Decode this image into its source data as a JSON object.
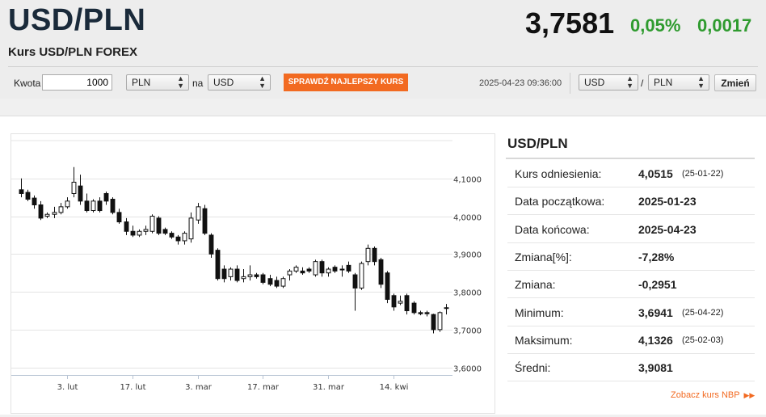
{
  "header": {
    "pair": "USD/PLN",
    "subtitle": "Kurs USD/PLN FOREX",
    "price": "3,7581",
    "change_pct": "0,05%",
    "change_abs": "0,0017"
  },
  "converter": {
    "amount_label": "Kwota",
    "amount_value": "1000",
    "from_currency": "PLN",
    "na_label": "na",
    "to_currency": "USD",
    "best_rate_button": "SPRAWDŹ NAJLEPSZY KURS",
    "timestamp": "2025-04-23 09:36:00",
    "pair_base": "USD",
    "slash": "/",
    "pair_quote": "PLN",
    "change_button": "Zmień"
  },
  "info": {
    "title": "USD/PLN",
    "rows": [
      {
        "label": "Kurs odniesienia:",
        "value": "4,0515",
        "date": "(25-01-22)"
      },
      {
        "label": "Data początkowa:",
        "value": "2025-01-23",
        "date": ""
      },
      {
        "label": "Data końcowa:",
        "value": "2025-04-23",
        "date": ""
      },
      {
        "label": "Zmiana[%]:",
        "value": "-7,28%",
        "date": ""
      },
      {
        "label": "Zmiana:",
        "value": "-0,2951",
        "date": ""
      },
      {
        "label": "Minimum:",
        "value": "3,6941",
        "date": "(25-04-22)"
      },
      {
        "label": "Maksimum:",
        "value": "4,1326",
        "date": "(25-02-03)"
      },
      {
        "label": "Średni:",
        "value": "3,9081",
        "date": ""
      }
    ],
    "nbp_link": "Zobacz kurs NBP",
    "nbp_icon": "double-chevron-right-icon"
  },
  "colors": {
    "up": "#2f9b2f",
    "accent": "#f26a21",
    "candle_down": "#111111",
    "candle_up": "#ffffff"
  },
  "chart_data": {
    "type": "candlestick",
    "y_ticks": [
      "4,1000",
      "4,0000",
      "3,9000",
      "3,8000",
      "3,7000",
      "3,6000"
    ],
    "y_tick_values": [
      4.1,
      4.0,
      3.9,
      3.8,
      3.7,
      3.6
    ],
    "ylim": [
      3.58,
      4.2
    ],
    "x_ticks": [
      {
        "label": "3. lut",
        "index": 7
      },
      {
        "label": "17. lut",
        "index": 17
      },
      {
        "label": "3. mar",
        "index": 27
      },
      {
        "label": "17. mar",
        "index": 37
      },
      {
        "label": "31. mar",
        "index": 47
      },
      {
        "label": "14. kwi",
        "index": 57
      }
    ],
    "candles": [
      {
        "o": 4.07,
        "h": 4.1,
        "l": 4.05,
        "c": 4.06
      },
      {
        "o": 4.063,
        "h": 4.07,
        "l": 4.04,
        "c": 4.045
      },
      {
        "o": 4.048,
        "h": 4.055,
        "l": 4.02,
        "c": 4.03
      },
      {
        "o": 4.03,
        "h": 4.04,
        "l": 3.99,
        "c": 3.995
      },
      {
        "o": 4.0,
        "h": 4.01,
        "l": 3.995,
        "c": 4.005
      },
      {
        "o": 4.005,
        "h": 4.025,
        "l": 3.995,
        "c": 4.01
      },
      {
        "o": 4.01,
        "h": 4.035,
        "l": 4.005,
        "c": 4.025
      },
      {
        "o": 4.025,
        "h": 4.05,
        "l": 4.02,
        "c": 4.04
      },
      {
        "o": 4.06,
        "h": 4.13,
        "l": 4.05,
        "c": 4.09
      },
      {
        "o": 4.08,
        "h": 4.11,
        "l": 4.03,
        "c": 4.04
      },
      {
        "o": 4.04,
        "h": 4.06,
        "l": 4.01,
        "c": 4.015
      },
      {
        "o": 4.015,
        "h": 4.045,
        "l": 4.01,
        "c": 4.04
      },
      {
        "o": 4.04,
        "h": 4.05,
        "l": 4.01,
        "c": 4.015
      },
      {
        "o": 4.06,
        "h": 4.065,
        "l": 4.03,
        "c": 4.04
      },
      {
        "o": 4.045,
        "h": 4.05,
        "l": 4.005,
        "c": 4.01
      },
      {
        "o": 4.01,
        "h": 4.02,
        "l": 3.98,
        "c": 3.985
      },
      {
        "o": 3.985,
        "h": 3.995,
        "l": 3.95,
        "c": 3.96
      },
      {
        "o": 3.96,
        "h": 3.975,
        "l": 3.945,
        "c": 3.95
      },
      {
        "o": 3.95,
        "h": 3.965,
        "l": 3.945,
        "c": 3.96
      },
      {
        "o": 3.96,
        "h": 3.975,
        "l": 3.95,
        "c": 3.965
      },
      {
        "o": 3.96,
        "h": 4.005,
        "l": 3.955,
        "c": 4.0
      },
      {
        "o": 3.995,
        "h": 4.0,
        "l": 3.95,
        "c": 3.955
      },
      {
        "o": 3.965,
        "h": 3.97,
        "l": 3.95,
        "c": 3.955
      },
      {
        "o": 3.955,
        "h": 3.96,
        "l": 3.94,
        "c": 3.945
      },
      {
        "o": 3.945,
        "h": 3.95,
        "l": 3.925,
        "c": 3.935
      },
      {
        "o": 3.935,
        "h": 3.96,
        "l": 3.925,
        "c": 3.955
      },
      {
        "o": 3.94,
        "h": 4.01,
        "l": 3.93,
        "c": 3.995
      },
      {
        "o": 3.99,
        "h": 4.035,
        "l": 3.98,
        "c": 4.025
      },
      {
        "o": 4.02,
        "h": 4.03,
        "l": 3.95,
        "c": 3.955
      },
      {
        "o": 3.95,
        "h": 3.955,
        "l": 3.89,
        "c": 3.9
      },
      {
        "o": 3.91,
        "h": 3.915,
        "l": 3.83,
        "c": 3.835
      },
      {
        "o": 3.86,
        "h": 3.87,
        "l": 3.825,
        "c": 3.835
      },
      {
        "o": 3.84,
        "h": 3.865,
        "l": 3.83,
        "c": 3.86
      },
      {
        "o": 3.86,
        "h": 3.87,
        "l": 3.825,
        "c": 3.83
      },
      {
        "o": 3.835,
        "h": 3.86,
        "l": 3.825,
        "c": 3.84
      },
      {
        "o": 3.84,
        "h": 3.87,
        "l": 3.83,
        "c": 3.845
      },
      {
        "o": 3.845,
        "h": 3.85,
        "l": 3.835,
        "c": 3.84
      },
      {
        "o": 3.845,
        "h": 3.85,
        "l": 3.82,
        "c": 3.825
      },
      {
        "o": 3.835,
        "h": 3.845,
        "l": 3.815,
        "c": 3.82
      },
      {
        "o": 3.83,
        "h": 3.84,
        "l": 3.81,
        "c": 3.815
      },
      {
        "o": 3.815,
        "h": 3.84,
        "l": 3.81,
        "c": 3.835
      },
      {
        "o": 3.845,
        "h": 3.86,
        "l": 3.83,
        "c": 3.855
      },
      {
        "o": 3.855,
        "h": 3.87,
        "l": 3.85,
        "c": 3.865
      },
      {
        "o": 3.855,
        "h": 3.865,
        "l": 3.845,
        "c": 3.85
      },
      {
        "o": 3.86,
        "h": 3.865,
        "l": 3.85,
        "c": 3.855
      },
      {
        "o": 3.845,
        "h": 3.885,
        "l": 3.84,
        "c": 3.88
      },
      {
        "o": 3.88,
        "h": 3.885,
        "l": 3.84,
        "c": 3.85
      },
      {
        "o": 3.85,
        "h": 3.865,
        "l": 3.84,
        "c": 3.86
      },
      {
        "o": 3.865,
        "h": 3.87,
        "l": 3.85,
        "c": 3.855
      },
      {
        "o": 3.86,
        "h": 3.87,
        "l": 3.84,
        "c": 3.86
      },
      {
        "o": 3.87,
        "h": 3.88,
        "l": 3.85,
        "c": 3.855
      },
      {
        "o": 3.845,
        "h": 3.85,
        "l": 3.75,
        "c": 3.81
      },
      {
        "o": 3.81,
        "h": 3.88,
        "l": 3.805,
        "c": 3.875
      },
      {
        "o": 3.88,
        "h": 3.925,
        "l": 3.87,
        "c": 3.915
      },
      {
        "o": 3.915,
        "h": 3.92,
        "l": 3.87,
        "c": 3.88
      },
      {
        "o": 3.885,
        "h": 3.89,
        "l": 3.81,
        "c": 3.82
      },
      {
        "o": 3.85,
        "h": 3.855,
        "l": 3.77,
        "c": 3.78
      },
      {
        "o": 3.79,
        "h": 3.795,
        "l": 3.75,
        "c": 3.76
      },
      {
        "o": 3.77,
        "h": 3.79,
        "l": 3.765,
        "c": 3.775
      },
      {
        "o": 3.79,
        "h": 3.795,
        "l": 3.74,
        "c": 3.75
      },
      {
        "o": 3.77,
        "h": 3.775,
        "l": 3.74,
        "c": 3.745
      },
      {
        "o": 3.745,
        "h": 3.75,
        "l": 3.738,
        "c": 3.742
      },
      {
        "o": 3.745,
        "h": 3.75,
        "l": 3.735,
        "c": 3.742
      },
      {
        "o": 3.74,
        "h": 3.742,
        "l": 3.69,
        "c": 3.7
      },
      {
        "o": 3.7,
        "h": 3.748,
        "l": 3.694,
        "c": 3.745
      },
      {
        "o": 3.756,
        "h": 3.768,
        "l": 3.74,
        "c": 3.758
      }
    ]
  }
}
